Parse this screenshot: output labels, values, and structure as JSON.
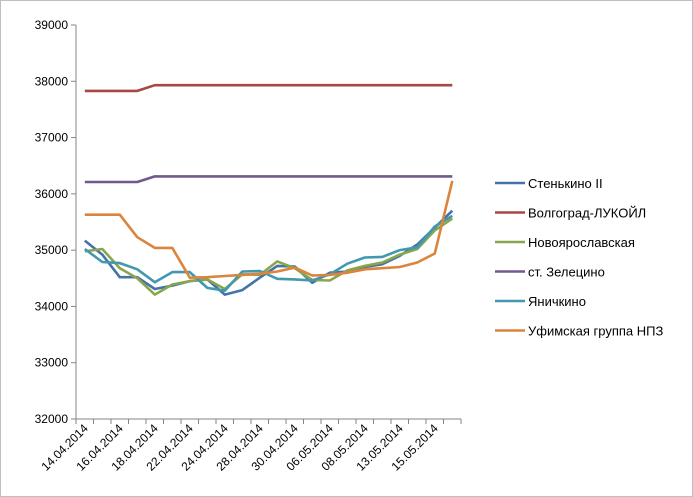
{
  "chart_data": {
    "type": "line",
    "title": "",
    "xlabel": "",
    "ylabel": "",
    "ylim": [
      32000,
      39000
    ],
    "yticks": [
      32000,
      33000,
      34000,
      35000,
      36000,
      37000,
      38000,
      39000
    ],
    "ytick_labels": [
      "32000",
      "33000",
      "34000",
      "35000",
      "36000",
      "37000",
      "38000",
      "39000"
    ],
    "x_tick_labels": [
      "14.04.2014",
      "16.04.2014",
      "18.04.2014",
      "22.04.2014",
      "24.04.2014",
      "28.04.2014",
      "30.04.2014",
      "06.05.2014",
      "08.05.2014",
      "13.05.2014",
      "15.05.2014"
    ],
    "n_points": 22,
    "grid": false,
    "legend_position": "right",
    "series": [
      {
        "name": "Стенькино II",
        "color": "#4572a7",
        "values": [
          35170,
          34920,
          34520,
          34520,
          34310,
          34370,
          34450,
          34480,
          34210,
          34290,
          34510,
          34720,
          34710,
          34420,
          34600,
          34620,
          34700,
          34750,
          34900,
          35100,
          35400,
          35700
        ]
      },
      {
        "name": "Волгоград-ЛУКОЙЛ",
        "color": "#aa4643",
        "values": [
          37830,
          37830,
          37830,
          37830,
          37930,
          37930,
          37930,
          37930,
          37930,
          37930,
          37930,
          37930,
          37930,
          37930,
          37930,
          37930,
          37930,
          37930,
          37930,
          37930,
          37930,
          37930
        ]
      },
      {
        "name": "Новоярославская",
        "color": "#89a54e",
        "values": [
          34980,
          35020,
          34680,
          34500,
          34210,
          34390,
          34450,
          34480,
          34310,
          34570,
          34560,
          34800,
          34680,
          34470,
          34460,
          34640,
          34720,
          34780,
          34920,
          35020,
          35350,
          35560
        ]
      },
      {
        "name": "ст. Зелецино",
        "color": "#71588f",
        "values": [
          36210,
          36210,
          36210,
          36210,
          36310,
          36310,
          36310,
          36310,
          36310,
          36310,
          36310,
          36310,
          36310,
          36310,
          36310,
          36310,
          36310,
          36310,
          36310,
          36310,
          36310,
          36310
        ]
      },
      {
        "name": "Яничкино",
        "color": "#4198af",
        "values": [
          35020,
          34790,
          34770,
          34660,
          34430,
          34610,
          34610,
          34330,
          34280,
          34620,
          34630,
          34490,
          34480,
          34460,
          34570,
          34760,
          34870,
          34880,
          35000,
          35050,
          35420,
          35610
        ]
      },
      {
        "name": "Уфимская группа НПЗ",
        "color": "#db843d",
        "values": [
          35630,
          35630,
          35630,
          35230,
          35040,
          35040,
          34510,
          34520,
          34540,
          34560,
          34580,
          34620,
          34690,
          34550,
          34560,
          34600,
          34660,
          34680,
          34700,
          34780,
          34940,
          36230
        ]
      }
    ]
  }
}
